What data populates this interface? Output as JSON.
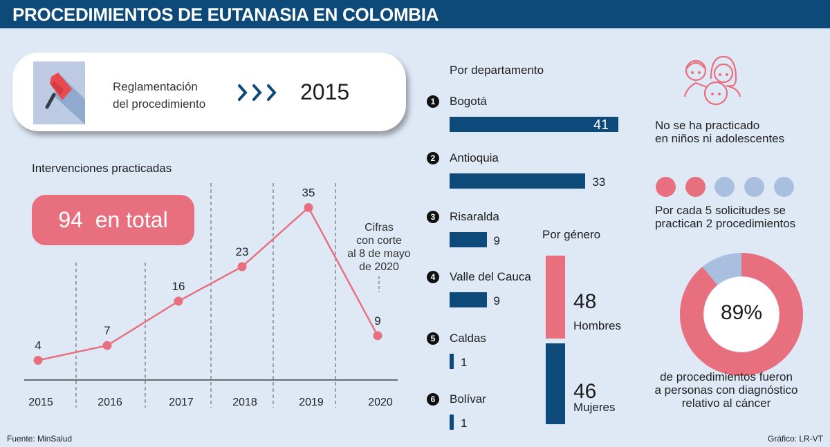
{
  "title": "PROCEDIMIENTOS DE EUTANASIA EN COLOMBIA",
  "regulation": {
    "label_line1": "Reglamentación",
    "label_line2": "del procedimiento",
    "icon": "flag-icon",
    "year": "2015"
  },
  "interventions": {
    "heading": "Intervenciones practicadas",
    "total_number": "94",
    "total_label": "en total",
    "note": [
      "Cifras",
      "con corte",
      "al 8 de mayo",
      "de 2020"
    ]
  },
  "chart_data": {
    "type": "line",
    "x": [
      "2015",
      "2016",
      "2017",
      "2018",
      "2019",
      "2020"
    ],
    "values": [
      4,
      7,
      16,
      23,
      35,
      9
    ],
    "data_labels": [
      "4",
      "7",
      "16",
      "23",
      "35",
      "9"
    ],
    "color": "#e8707e",
    "ylim": [
      0,
      35
    ],
    "grid": false
  },
  "departments": {
    "heading": "Por departamento",
    "items": [
      {
        "num": "1",
        "name": "Bogotá",
        "value": 41,
        "label": "41"
      },
      {
        "num": "2",
        "name": "Antioquia",
        "value": 33,
        "label": "33"
      },
      {
        "num": "3",
        "name": "Risaralda",
        "value": 9,
        "label": "9"
      },
      {
        "num": "4",
        "name": "Valle del Cauca",
        "value": 9,
        "label": "9"
      },
      {
        "num": "5",
        "name": "Caldas",
        "value": 1,
        "label": "1"
      },
      {
        "num": "6",
        "name": "Bolívar",
        "value": 1,
        "label": "1"
      }
    ]
  },
  "gender": {
    "heading": "Por género",
    "men": {
      "value": "48",
      "label": "Hombres"
    },
    "women": {
      "value": "46",
      "label": "Mujeres"
    }
  },
  "children": {
    "icon": "family-icon",
    "text_line1": "No se ha practicado",
    "text_line2": "en niños ni adolescentes"
  },
  "requests": {
    "practiced": 2,
    "total": 5,
    "text_line1": "Por cada 5 solicitudes se",
    "text_line2": "practican 2 procedimientos"
  },
  "cancer": {
    "percent": 89,
    "label": "89%",
    "text": [
      "de procedimientos fueron",
      "a personas con diagnóstico",
      "relativo al cáncer"
    ]
  },
  "colors": {
    "navy": "#0d4a7a",
    "pink": "#e8707e",
    "lightblue": "#a9bfdf",
    "background": "#dfe9f6"
  },
  "footer": {
    "source": "Fuente: MinSalud",
    "credit": "Gráfico: LR-VT"
  }
}
